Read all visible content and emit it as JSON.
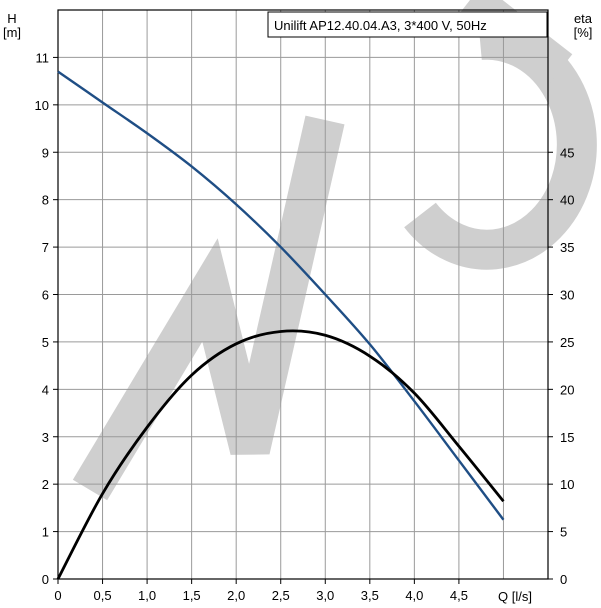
{
  "chart_data": {
    "type": "line",
    "legend_box_text": "Unilift AP12.40.04.A3, 3*400 V, 50Hz",
    "left_axis": {
      "label_line1": "H",
      "label_line2": "[m]",
      "range": [
        0,
        12
      ],
      "ticks": [
        "0",
        "1",
        "2",
        "3",
        "4",
        "5",
        "6",
        "7",
        "8",
        "9",
        "10",
        "11"
      ]
    },
    "right_axis": {
      "label_line1": "eta",
      "label_line2": "[%]",
      "range": [
        0,
        60
      ],
      "ticks": [
        "0",
        "5",
        "10",
        "15",
        "20",
        "25",
        "30",
        "35",
        "40",
        "45"
      ]
    },
    "x_axis": {
      "label": "Q [l/s]",
      "range": [
        0,
        5.5
      ],
      "ticks": [
        "0",
        "0,5",
        "1,0",
        "1,5",
        "2,0",
        "2,5",
        "3,0",
        "3,5",
        "4,0",
        "4,5"
      ]
    },
    "grid": true,
    "series": [
      {
        "axis": "left",
        "color": "#1f4e85",
        "x": [
          0,
          0.5,
          1.0,
          1.5,
          2.0,
          2.5,
          3.0,
          3.5,
          4.0,
          4.5,
          5.0
        ],
        "y": [
          10.7,
          10.05,
          9.4,
          8.7,
          7.9,
          7.0,
          6.0,
          4.95,
          3.75,
          2.5,
          1.25
        ]
      },
      {
        "axis": "right",
        "color": "#000000",
        "x": [
          0,
          0.5,
          1.0,
          1.5,
          2.0,
          2.5,
          3.0,
          3.5,
          4.0,
          4.5,
          5.0
        ],
        "y": [
          0,
          9.0,
          16.0,
          21.5,
          24.8,
          26.1,
          25.7,
          23.5,
          19.6,
          14.0,
          8.2
        ]
      }
    ]
  },
  "watermark": {
    "letters": "MOC",
    "color": "#cfcfcf"
  }
}
